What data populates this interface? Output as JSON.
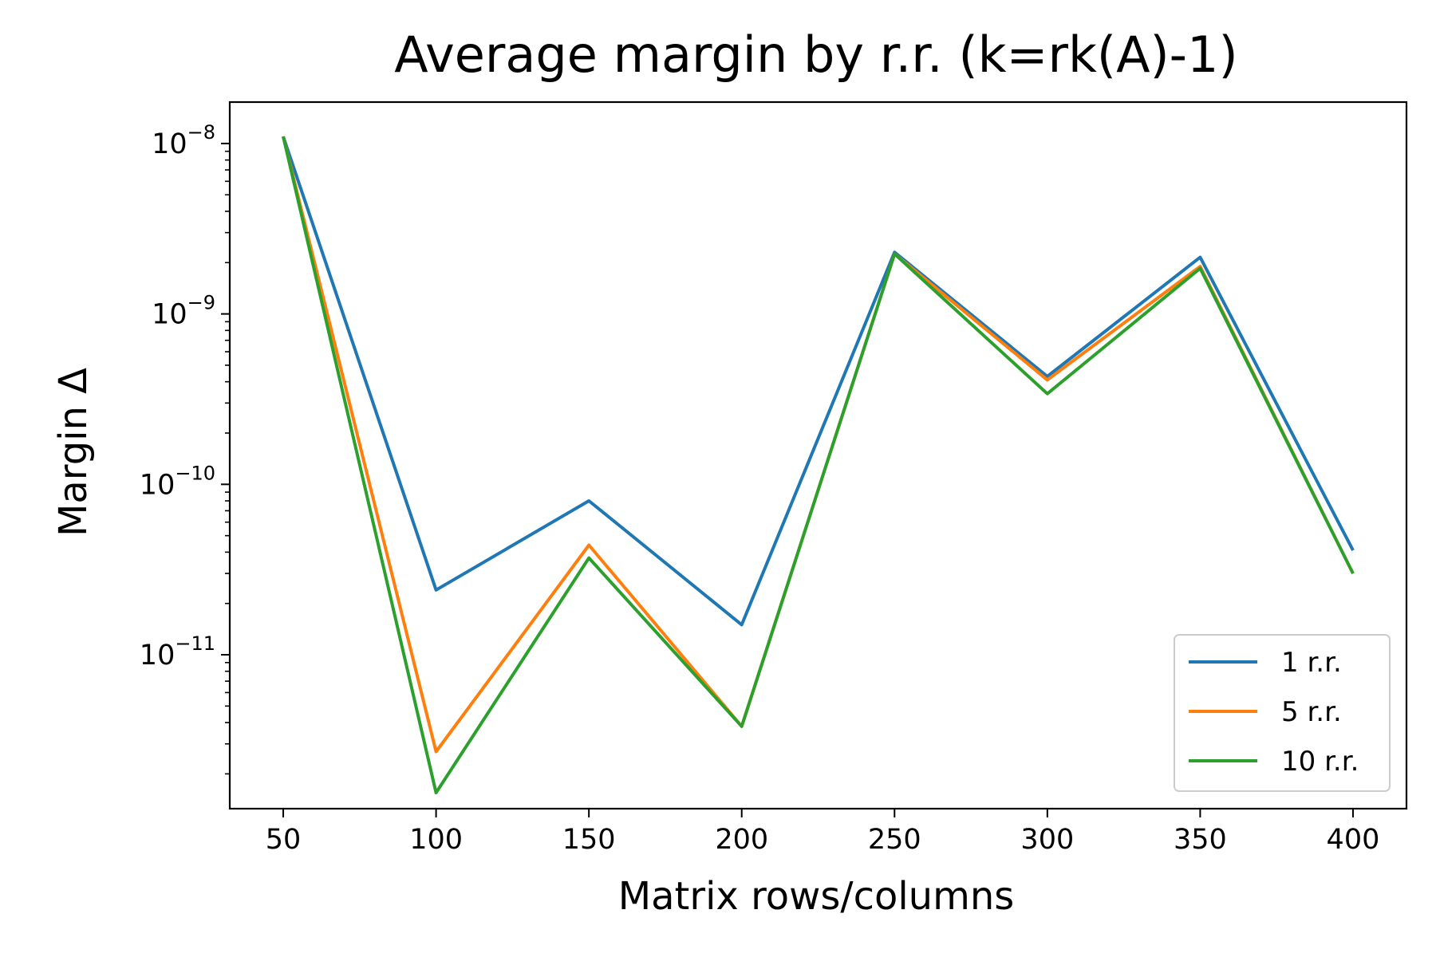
{
  "chart_data": {
    "type": "line",
    "title": "Average margin by r.r. (k=rk(A)-1)",
    "xlabel": "Matrix rows/columns",
    "ylabel": "Margin Δ",
    "x": [
      50,
      100,
      150,
      200,
      250,
      300,
      350,
      400
    ],
    "xlim": [
      32.5,
      417.5
    ],
    "ylim": [
      1.25e-12,
      1.75e-08
    ],
    "yscale": "log",
    "grid": false,
    "legend_position": "lower right",
    "x_ticks": [
      50,
      100,
      150,
      200,
      250,
      300,
      350,
      400
    ],
    "x_tick_labels": [
      "50",
      "100",
      "150",
      "200",
      "250",
      "300",
      "350",
      "400"
    ],
    "y_ticks": [
      {
        "value": 1e-08,
        "base": "10",
        "exp": "−8"
      },
      {
        "value": 1e-09,
        "base": "10",
        "exp": "−9"
      },
      {
        "value": 1e-10,
        "base": "10",
        "exp": "−10"
      },
      {
        "value": 1e-11,
        "base": "10",
        "exp": "−11"
      }
    ],
    "series": [
      {
        "name": "1 r.r.",
        "color": "#1f77b4",
        "values": [
          1.1e-08,
          2.4e-11,
          8e-11,
          1.5e-11,
          2.3e-09,
          4.3e-10,
          2.15e-09,
          4.1e-11
        ]
      },
      {
        "name": "5 r.r.",
        "color": "#ff7f0e",
        "values": [
          1.1e-08,
          2.7e-12,
          4.4e-11,
          3.8e-12,
          2.25e-09,
          4.1e-10,
          1.9e-09,
          3e-11
        ]
      },
      {
        "name": "10 r.r.",
        "color": "#2ca02c",
        "values": [
          1.1e-08,
          1.55e-12,
          3.7e-11,
          3.8e-12,
          2.25e-09,
          3.4e-10,
          1.85e-09,
          3e-11
        ]
      }
    ]
  }
}
